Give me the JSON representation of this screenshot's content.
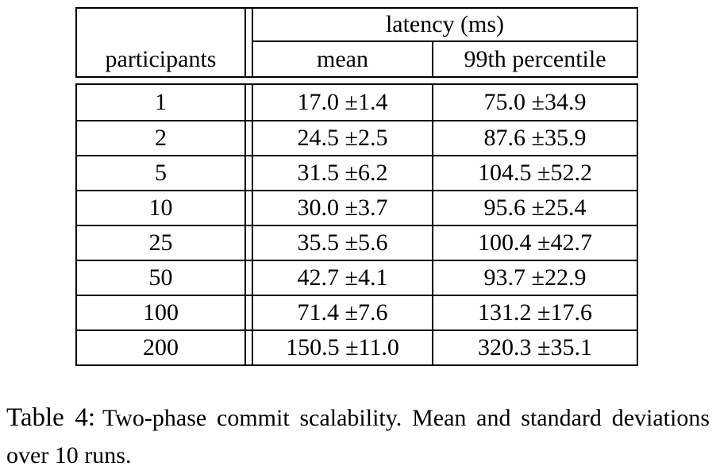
{
  "table": {
    "header": {
      "participants_label": "participants",
      "latency_group_label": "latency (ms)",
      "mean_label": "mean",
      "p99_label": "99th percentile"
    },
    "rows": [
      {
        "participants": "1",
        "mean": "17.0 ±1.4",
        "p99": "75.0 ±34.9"
      },
      {
        "participants": "2",
        "mean": "24.5 ±2.5",
        "p99": "87.6 ±35.9"
      },
      {
        "participants": "5",
        "mean": "31.5 ±6.2",
        "p99": "104.5 ±52.2"
      },
      {
        "participants": "10",
        "mean": "30.0 ±3.7",
        "p99": "95.6 ±25.4"
      },
      {
        "participants": "25",
        "mean": "35.5 ±5.6",
        "p99": "100.4 ±42.7"
      },
      {
        "participants": "50",
        "mean": "42.7 ±4.1",
        "p99": "93.7 ±22.9"
      },
      {
        "participants": "100",
        "mean": "71.4 ±7.6",
        "p99": "131.2 ±17.6"
      },
      {
        "participants": "200",
        "mean": "150.5 ±11.0",
        "p99": "320.3 ±35.1"
      }
    ]
  },
  "caption": {
    "label": "Table 4:",
    "text": "Two-phase commit scalability.  Mean and standard deviations over 10 runs."
  },
  "colors": {
    "text": "#000000",
    "rule": "#000000",
    "background": "#ffffff"
  }
}
